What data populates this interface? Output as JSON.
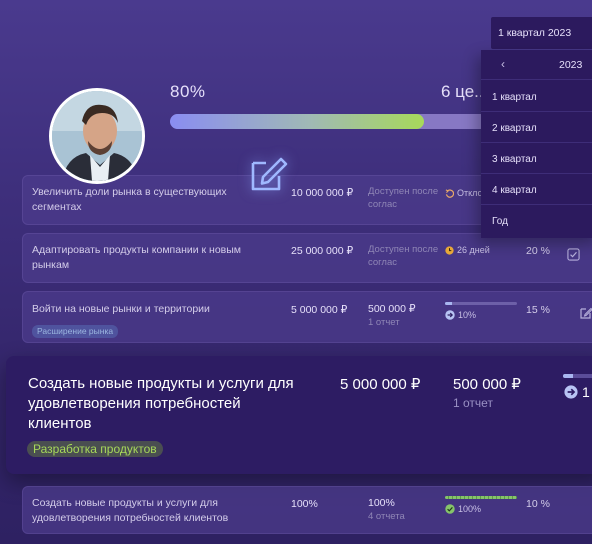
{
  "header": {
    "progress_label": "80%",
    "progress_fraction": 0.8,
    "goals_label": "6 це..."
  },
  "dropdown": {
    "selected": "1 квартал 2023",
    "year": "2023",
    "items": [
      "1 квартал",
      "2 квартал",
      "3 квартал",
      "4 квартал",
      "Год"
    ]
  },
  "rows": [
    {
      "name": "Увеличить доли рынка в существующих сегментах",
      "amount": "10 000 000 ₽",
      "status": "Доступен после соглас",
      "timer": "Откло"
    },
    {
      "name": "Адаптировать продукты компании к новым рынкам",
      "amount": "25 000 000 ₽",
      "status": "Доступен после соглас",
      "timer": "26 дней",
      "percent": "20 %"
    },
    {
      "name": "Войти на новые рынки и территории",
      "tag": "Расширение рынка",
      "amount": "5 000 000 ₽",
      "plan": "500 000 ₽",
      "plan_sub": "1 отчет",
      "progress": "10%",
      "progress_fraction": 0.1,
      "percent": "15 %"
    }
  ],
  "highlight": {
    "name": "Создать новые продукты и услуги для удовлетворения потребностей клиентов",
    "tag": "Разработка продуктов",
    "amount": "5 000 000 ₽",
    "plan": "500 000 ₽",
    "plan_sub": "1 отчет",
    "progress_fraction": 0.25,
    "progress": "1"
  },
  "last_row": {
    "name": "Создать новые продукты и услуги для удовлетворения потребностей клиентов",
    "amount": "100%",
    "plan": "100%",
    "plan_sub": "4 отчета",
    "progress": "100%",
    "progress_fraction": 1.0,
    "percent": "10 %"
  },
  "colors": {
    "accent_green": "#a7d95a",
    "accent_blue": "#8a8df2",
    "row_background": "#4c3c8c",
    "dropdown_background": "#2c1a5e"
  }
}
